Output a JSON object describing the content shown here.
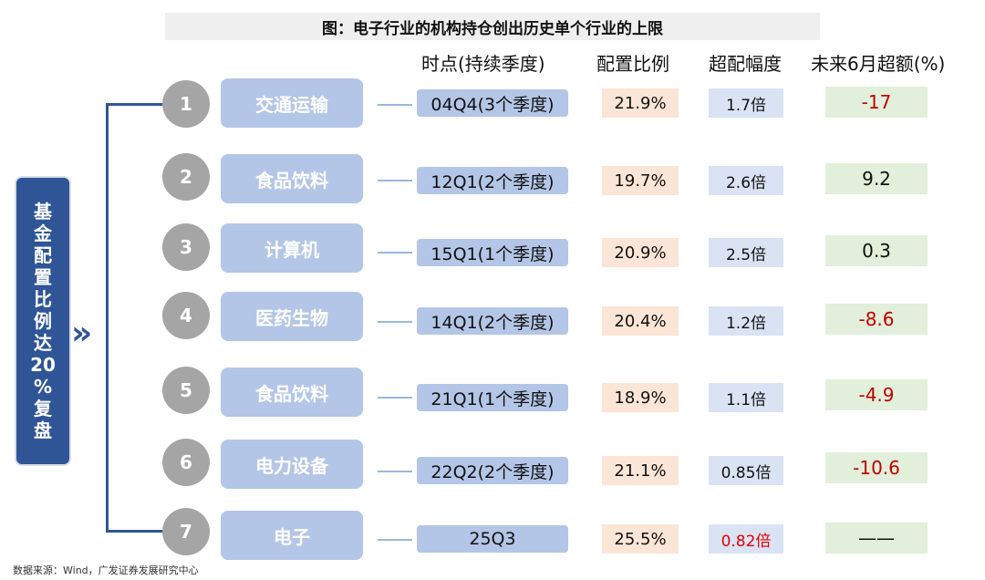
{
  "title": "图：电子行业的机构持仓创出历史单个行业的上限",
  "headers": {
    "period": "时点(持续季度)",
    "ratio": "配置比例",
    "excess": "超配幅度",
    "future": "未来6月超额(%)"
  },
  "left_label": [
    "基",
    "金",
    "配",
    "置",
    "比",
    "例",
    "达",
    "20",
    "%",
    "复",
    "盘"
  ],
  "chevron": "»",
  "rows": [
    {
      "num": "1",
      "industry": "交通运输",
      "period": "04Q4(3个季度)",
      "ratio": "21.9%",
      "excess": "1.7倍",
      "future": "-17"
    },
    {
      "num": "2",
      "industry": "食品饮料",
      "period": "12Q1(2个季度)",
      "ratio": "19.7%",
      "excess": "2.6倍",
      "future": "9.2"
    },
    {
      "num": "3",
      "industry": "计算机",
      "period": "15Q1(1个季度)",
      "ratio": "20.9%",
      "excess": "2.5倍",
      "future": "0.3"
    },
    {
      "num": "4",
      "industry": "医药生物",
      "period": "14Q1(2个季度)",
      "ratio": "20.4%",
      "excess": "1.2倍",
      "future": "-8.6"
    },
    {
      "num": "5",
      "industry": "食品饮料",
      "period": "21Q1(1个季度)",
      "ratio": "18.9%",
      "excess": "1.1倍",
      "future": "-4.9"
    },
    {
      "num": "6",
      "industry": "电力设备",
      "period": "22Q2(2个季度)",
      "ratio": "21.1%",
      "excess": "0.85倍",
      "future": "-10.6"
    },
    {
      "num": "7",
      "industry": "电子",
      "period": "25Q3",
      "ratio": "25.5%",
      "excess": "0.82倍",
      "future": "——"
    }
  ],
  "colors": {
    "navy": "#2f5597",
    "negative": "#c00000",
    "highlight": "#e00000"
  },
  "source": "数据来源：Wind，广发证券发展研究中心"
}
